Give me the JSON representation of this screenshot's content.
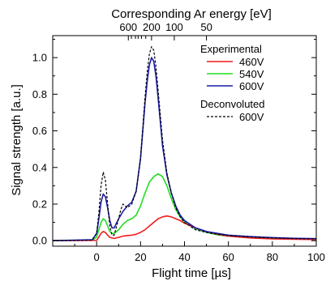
{
  "chart_data": {
    "type": "line",
    "xlabel": "Flight time [µs]",
    "ylabel": "Signal strength [a.u.]",
    "top_axis_label": "Corresponding Ar energy [eV]",
    "xlim": [
      -20,
      100
    ],
    "ylim": [
      -0.03,
      1.12
    ],
    "xticks": [
      0,
      20,
      40,
      60,
      80,
      100
    ],
    "yticks": [
      0.0,
      0.2,
      0.4,
      0.6,
      0.8,
      1.0
    ],
    "xtick_labels": [
      "0",
      "20",
      "40",
      "60",
      "80",
      "100"
    ],
    "ytick_labels": [
      "0.0",
      "0.2",
      "0.4",
      "0.6",
      "0.8",
      "1.0"
    ],
    "top_ticks": [
      {
        "value": 600,
        "label": "600"
      },
      {
        "value": 500,
        "label": ""
      },
      {
        "value": 400,
        "label": ""
      },
      {
        "value": 350,
        "label": ""
      },
      {
        "value": 300,
        "label": ""
      },
      {
        "value": 250,
        "label": ""
      },
      {
        "value": 200,
        "label": "200"
      },
      {
        "value": 100,
        "label": "100"
      },
      {
        "value": 50,
        "label": "50"
      }
    ],
    "legend": {
      "placement": "top-right",
      "group1_title": "Experimental",
      "group2_title": "Deconvoluted"
    },
    "series": [
      {
        "name": "460V",
        "color": "#ee1c1c",
        "style": "solid",
        "x": [
          -20,
          0,
          1,
          2,
          3,
          4,
          5,
          6,
          8,
          10,
          12,
          14,
          16,
          18,
          20,
          22,
          24,
          26,
          28,
          30,
          32,
          34,
          36,
          38,
          40,
          45,
          50,
          55,
          60,
          70,
          80,
          90,
          100
        ],
        "y": [
          0.0,
          0.002,
          0.02,
          0.04,
          0.05,
          0.045,
          0.03,
          0.018,
          0.012,
          0.018,
          0.025,
          0.028,
          0.03,
          0.035,
          0.045,
          0.06,
          0.08,
          0.1,
          0.12,
          0.13,
          0.135,
          0.13,
          0.12,
          0.11,
          0.095,
          0.07,
          0.05,
          0.035,
          0.025,
          0.015,
          0.01,
          0.008,
          0.006
        ]
      },
      {
        "name": "540V",
        "color": "#22dd22",
        "style": "solid",
        "x": [
          -20,
          -2,
          0,
          1,
          2,
          3,
          4,
          5,
          6,
          7,
          8,
          10,
          12,
          14,
          16,
          18,
          20,
          22,
          24,
          26,
          28,
          30,
          32,
          34,
          36,
          38,
          40,
          45,
          50,
          55,
          60,
          70,
          80,
          90,
          100
        ],
        "y": [
          0.0,
          0.003,
          0.02,
          0.06,
          0.1,
          0.12,
          0.11,
          0.08,
          0.05,
          0.04,
          0.04,
          0.06,
          0.09,
          0.11,
          0.12,
          0.14,
          0.19,
          0.26,
          0.32,
          0.35,
          0.365,
          0.35,
          0.3,
          0.23,
          0.17,
          0.13,
          0.1,
          0.065,
          0.045,
          0.032,
          0.025,
          0.017,
          0.013,
          0.01,
          0.008
        ]
      },
      {
        "name": "600V",
        "color": "#1a1aa8",
        "style": "solid",
        "x": [
          -20,
          -2,
          0,
          1,
          2,
          3,
          4,
          5,
          6,
          7,
          8,
          10,
          12,
          14,
          16,
          18,
          20,
          22,
          23,
          24,
          25,
          26,
          27,
          28,
          30,
          32,
          34,
          36,
          38,
          40,
          45,
          50,
          55,
          60,
          70,
          80,
          90,
          100
        ],
        "y": [
          0.0,
          0.005,
          0.04,
          0.12,
          0.21,
          0.255,
          0.24,
          0.18,
          0.11,
          0.07,
          0.07,
          0.12,
          0.16,
          0.19,
          0.21,
          0.27,
          0.45,
          0.75,
          0.87,
          0.96,
          1.0,
          0.98,
          0.9,
          0.78,
          0.52,
          0.36,
          0.26,
          0.19,
          0.14,
          0.11,
          0.07,
          0.05,
          0.04,
          0.03,
          0.022,
          0.017,
          0.013,
          0.011
        ]
      },
      {
        "name": "600V",
        "color": "#000000",
        "style": "dashed",
        "x": [
          -20,
          -2,
          0,
          1,
          2,
          3,
          4,
          5,
          6,
          7,
          8,
          10,
          11,
          12,
          13,
          14,
          16,
          18,
          20,
          22,
          23,
          24,
          25,
          26,
          27,
          28,
          30,
          32,
          34,
          36,
          38,
          40,
          45,
          50,
          55,
          60,
          70,
          80,
          90,
          100
        ],
        "y": [
          0.0,
          0.003,
          0.04,
          0.15,
          0.3,
          0.375,
          0.33,
          0.2,
          0.08,
          0.03,
          0.03,
          0.12,
          0.17,
          0.2,
          0.19,
          0.18,
          0.2,
          0.27,
          0.45,
          0.78,
          0.92,
          1.02,
          1.06,
          1.04,
          0.95,
          0.82,
          0.55,
          0.37,
          0.26,
          0.18,
          0.13,
          0.1,
          0.06,
          0.045,
          0.035,
          0.028,
          0.02,
          0.015,
          0.012,
          0.01
        ]
      }
    ]
  }
}
